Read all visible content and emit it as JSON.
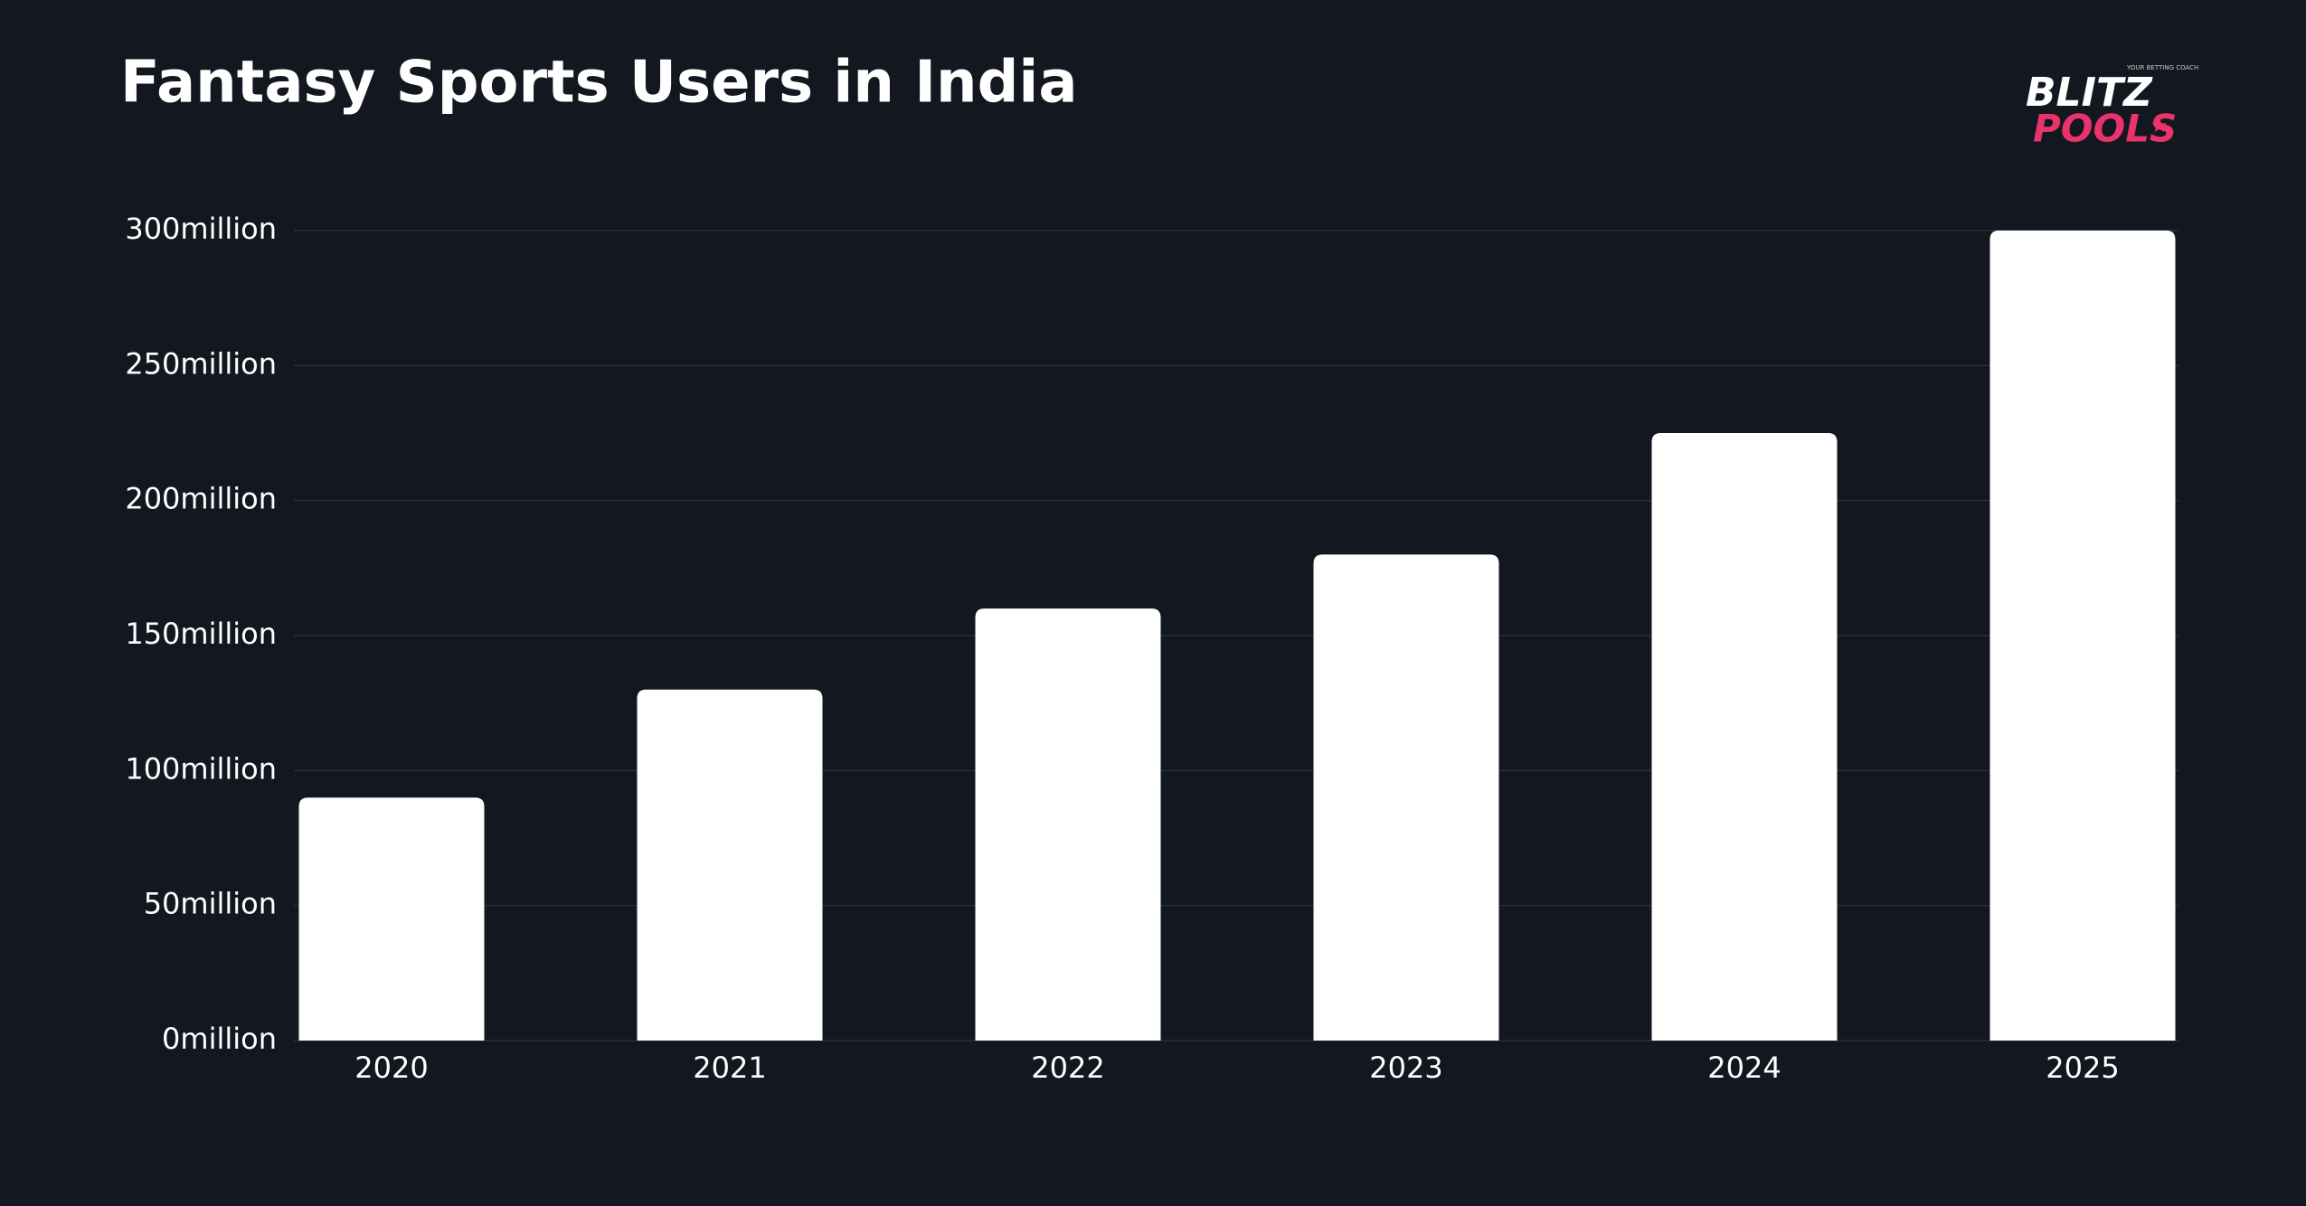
{
  "chart_data": {
    "type": "bar",
    "title": "Fantasy Sports Users in India",
    "logo": {
      "top": "BLITZ",
      "bottom": "POOLS",
      "tagline": "YOUR BETTING COACH"
    },
    "categories": [
      "2020",
      "2021",
      "2022",
      "2023",
      "2024",
      "2025"
    ],
    "values": [
      90,
      130,
      160,
      180,
      225,
      300
    ],
    "color": "#ffffff",
    "ylim": [
      0,
      300
    ],
    "yticks": [
      {
        "value": 0,
        "label": "0million"
      },
      {
        "value": 50,
        "label": "50million"
      },
      {
        "value": 100,
        "label": "100million"
      },
      {
        "value": 150,
        "label": "150million"
      },
      {
        "value": 200,
        "label": "200million"
      },
      {
        "value": 250,
        "label": "250million"
      },
      {
        "value": 300,
        "label": "300million"
      }
    ],
    "grid": true
  }
}
